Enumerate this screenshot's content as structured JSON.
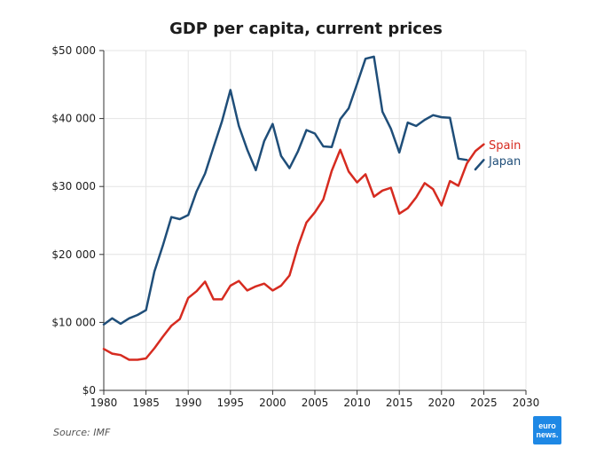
{
  "chart_data": {
    "type": "line",
    "title": "GDP per capita, current prices",
    "xlabel": "",
    "ylabel": "",
    "xlim": [
      1980,
      2030
    ],
    "ylim": [
      0,
      50000
    ],
    "xticks": [
      1980,
      1985,
      1990,
      1995,
      2000,
      2005,
      2010,
      2015,
      2020,
      2025,
      2030
    ],
    "xtick_labels": [
      "1980",
      "1985",
      "1990",
      "1995",
      "2000",
      "2005",
      "2010",
      "2015",
      "2020",
      "2025",
      "2030"
    ],
    "yticks": [
      0,
      10000,
      20000,
      30000,
      40000,
      50000
    ],
    "ytick_labels": [
      "$0",
      "$10 000",
      "$20 000",
      "$30 000",
      "$40 000",
      "$50 000"
    ],
    "grid": true,
    "series": [
      {
        "name": "Japan",
        "color": "#1f4e79",
        "x": [
          1980,
          1981,
          1982,
          1983,
          1984,
          1985,
          1986,
          1987,
          1988,
          1989,
          1990,
          1991,
          1992,
          1993,
          1994,
          1995,
          1996,
          1997,
          1998,
          1999,
          2000,
          2001,
          2002,
          2003,
          2004,
          2005,
          2006,
          2007,
          2008,
          2009,
          2010,
          2011,
          2012,
          2013,
          2014,
          2015,
          2016,
          2017,
          2018,
          2019,
          2020,
          2021,
          2022,
          2023,
          2024,
          2025
        ],
        "values": [
          9700,
          10600,
          9800,
          10600,
          11100,
          11800,
          17500,
          21300,
          25500,
          25200,
          25800,
          29300,
          31900,
          35800,
          39600,
          44200,
          38900,
          35400,
          32400,
          36700,
          39200,
          34500,
          32700,
          35200,
          38300,
          37800,
          35900,
          35800,
          39900,
          41500,
          45100,
          48800,
          49100,
          41000,
          38500,
          35000,
          39400,
          38900,
          39800,
          40500,
          40200,
          40100,
          34100,
          33900,
          32500,
          33900
        ],
        "segments": [
          [
            0,
            43
          ],
          [
            44,
            45
          ]
        ]
      },
      {
        "name": "Spain",
        "color": "#d62b20",
        "x": [
          1980,
          1981,
          1982,
          1983,
          1984,
          1985,
          1986,
          1987,
          1988,
          1989,
          1990,
          1991,
          1992,
          1993,
          1994,
          1995,
          1996,
          1997,
          1998,
          1999,
          2000,
          2001,
          2002,
          2003,
          2004,
          2005,
          2006,
          2007,
          2008,
          2009,
          2010,
          2011,
          2012,
          2013,
          2014,
          2015,
          2016,
          2017,
          2018,
          2019,
          2020,
          2021,
          2022,
          2023,
          2024,
          2025
        ],
        "values": [
          6100,
          5400,
          5200,
          4500,
          4500,
          4700,
          6200,
          7900,
          9500,
          10500,
          13600,
          14600,
          16000,
          13400,
          13400,
          15400,
          16100,
          14700,
          15300,
          15700,
          14700,
          15400,
          16900,
          21200,
          24700,
          26200,
          28100,
          32300,
          35400,
          32200,
          30600,
          31800,
          28500,
          29400,
          29800,
          26000,
          26800,
          28400,
          30500,
          29600,
          27200,
          30800,
          30100,
          33400,
          35200,
          36200
        ],
        "segments": [
          [
            0,
            45
          ]
        ]
      }
    ],
    "series_labels": [
      {
        "name": "Spain",
        "text": "Spain",
        "color": "#d62b20"
      },
      {
        "name": "Japan",
        "text": "Japan",
        "color": "#1f4e79"
      }
    ]
  },
  "footer": {
    "source": "Source: IMF",
    "logo_line1": "euro",
    "logo_line2": "news.",
    "logo_color": "#1e88e5"
  }
}
